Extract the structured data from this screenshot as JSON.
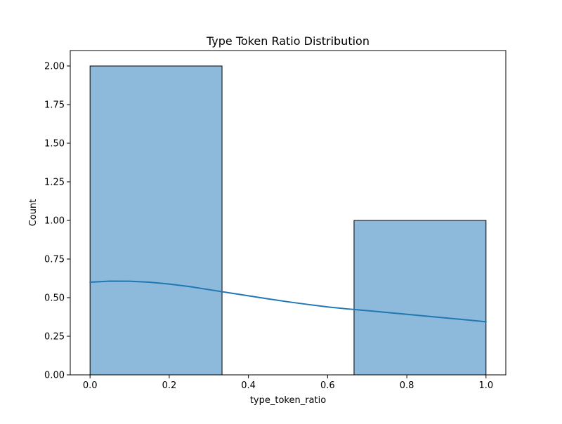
{
  "chart_data": {
    "type": "bar",
    "title": "Type Token Ratio Distribution",
    "xlabel": "type_token_ratio",
    "ylabel": "Count",
    "xlim": [
      -0.05,
      1.05
    ],
    "ylim": [
      0,
      2.1
    ],
    "bins": [
      {
        "x0": 0.0,
        "x1": 0.3333,
        "count": 2
      },
      {
        "x0": 0.3333,
        "x1": 0.6667,
        "count": 0
      },
      {
        "x0": 0.6667,
        "x1": 1.0,
        "count": 1
      }
    ],
    "x_ticks": [
      {
        "value": 0.0,
        "label": "0.0"
      },
      {
        "value": 0.2,
        "label": "0.2"
      },
      {
        "value": 0.4,
        "label": "0.4"
      },
      {
        "value": 0.6,
        "label": "0.6"
      },
      {
        "value": 0.8,
        "label": "0.8"
      },
      {
        "value": 1.0,
        "label": "1.0"
      }
    ],
    "y_ticks": [
      {
        "value": 0.0,
        "label": "0.00"
      },
      {
        "value": 0.25,
        "label": "0.25"
      },
      {
        "value": 0.5,
        "label": "0.50"
      },
      {
        "value": 0.75,
        "label": "0.75"
      },
      {
        "value": 1.0,
        "label": "1.00"
      },
      {
        "value": 1.25,
        "label": "1.25"
      },
      {
        "value": 1.5,
        "label": "1.50"
      },
      {
        "value": 1.75,
        "label": "1.75"
      },
      {
        "value": 2.0,
        "label": "2.00"
      }
    ],
    "kde": {
      "x": [
        0.0,
        0.05,
        0.1,
        0.15,
        0.2,
        0.25,
        0.3,
        0.35,
        0.4,
        0.45,
        0.5,
        0.55,
        0.6,
        0.65,
        0.7,
        0.75,
        0.8,
        0.85,
        0.9,
        0.95,
        1.0
      ],
      "y": [
        0.6,
        0.607,
        0.606,
        0.6,
        0.588,
        0.572,
        0.552,
        0.532,
        0.512,
        0.492,
        0.473,
        0.456,
        0.44,
        0.427,
        0.416,
        0.404,
        0.392,
        0.38,
        0.368,
        0.356,
        0.344
      ]
    },
    "grid": false,
    "colors": {
      "bar_fill": "#8db9da",
      "bar_edge": "#000000",
      "kde_line": "#1f77b4",
      "axes": "#000000"
    }
  }
}
